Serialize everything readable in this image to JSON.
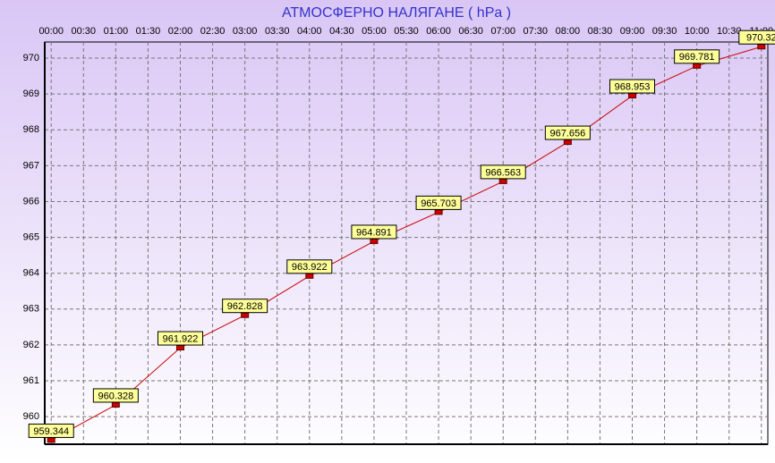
{
  "chart_data": {
    "type": "line",
    "title": "АТМОСФЕРНО НАЛЯГАНЕ  ( hPa )",
    "x": [
      0,
      1,
      2,
      3,
      4,
      5,
      6,
      7,
      8,
      9,
      10,
      11
    ],
    "series": [
      {
        "name": "АТМОСФЕРНО НАЛЯГАНЕ",
        "color": "#cc0000",
        "values": [
          959.344,
          960.328,
          961.922,
          962.828,
          963.922,
          964.891,
          965.703,
          966.563,
          967.656,
          968.953,
          969.781,
          970.32
        ]
      }
    ],
    "xlim": [
      -0.1,
      11.1
    ],
    "xticks": [
      {
        "value": 0,
        "label": "00:00"
      },
      {
        "value": 0.5,
        "label": "00:30"
      },
      {
        "value": 1,
        "label": "01:00"
      },
      {
        "value": 1.5,
        "label": "01:30"
      },
      {
        "value": 2,
        "label": "02:00"
      },
      {
        "value": 2.5,
        "label": "02:30"
      },
      {
        "value": 3,
        "label": "03:00"
      },
      {
        "value": 3.5,
        "label": "03:30"
      },
      {
        "value": 4,
        "label": "04:00"
      },
      {
        "value": 4.5,
        "label": "04:30"
      },
      {
        "value": 5,
        "label": "05:00"
      },
      {
        "value": 5.5,
        "label": "05:30"
      },
      {
        "value": 6,
        "label": "06:00"
      },
      {
        "value": 6.5,
        "label": "06:30"
      },
      {
        "value": 7,
        "label": "07:00"
      },
      {
        "value": 7.5,
        "label": "07:30"
      },
      {
        "value": 8,
        "label": "08:00"
      },
      {
        "value": 8.5,
        "label": "08:30"
      },
      {
        "value": 9,
        "label": "09:00"
      },
      {
        "value": 9.5,
        "label": "09:30"
      },
      {
        "value": 10,
        "label": "10:00"
      },
      {
        "value": 10.5,
        "label": "10:30"
      },
      {
        "value": 11,
        "label": "11:00"
      }
    ],
    "ylim": [
      959.23,
      970.45
    ],
    "yticks": [
      960,
      961,
      962,
      963,
      964,
      965,
      966,
      967,
      968,
      969,
      970
    ],
    "grid": true
  }
}
